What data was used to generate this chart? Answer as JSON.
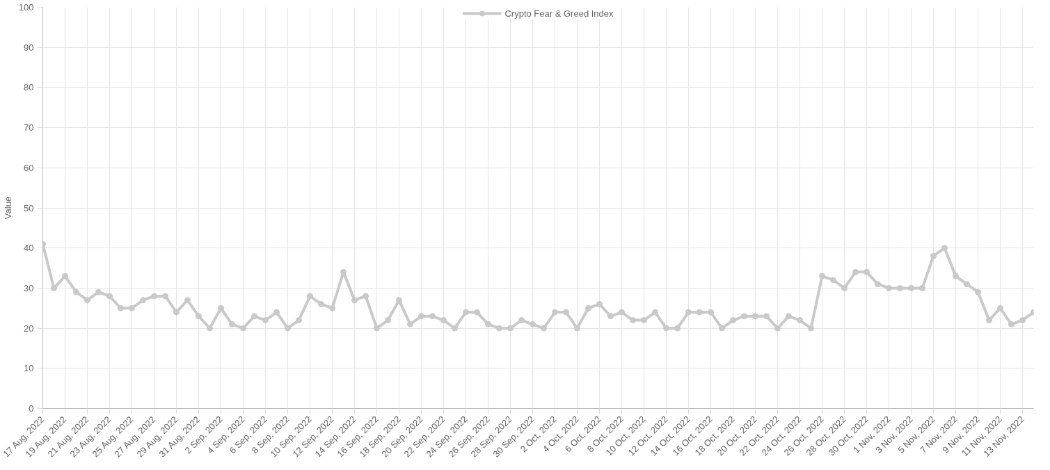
{
  "chart_data": {
    "type": "line",
    "ylabel": "Value",
    "ylim": [
      0,
      100
    ],
    "yticks": [
      0,
      10,
      20,
      30,
      40,
      50,
      60,
      70,
      80,
      90,
      100
    ],
    "xlim": [
      "2022-08-17",
      "2022-11-14"
    ],
    "xticks": [
      {
        "value": "2022-08-17",
        "label": "17 Aug, 2022"
      },
      {
        "value": "2022-08-19",
        "label": "19 Aug, 2022"
      },
      {
        "value": "2022-08-21",
        "label": "21 Aug, 2022"
      },
      {
        "value": "2022-08-23",
        "label": "23 Aug, 2022"
      },
      {
        "value": "2022-08-25",
        "label": "25 Aug, 2022"
      },
      {
        "value": "2022-08-27",
        "label": "27 Aug, 2022"
      },
      {
        "value": "2022-08-29",
        "label": "29 Aug, 2022"
      },
      {
        "value": "2022-08-31",
        "label": "31 Aug, 2022"
      },
      {
        "value": "2022-09-02",
        "label": "2 Sep, 2022"
      },
      {
        "value": "2022-09-04",
        "label": "4 Sep, 2022"
      },
      {
        "value": "2022-09-06",
        "label": "6 Sep, 2022"
      },
      {
        "value": "2022-09-08",
        "label": "8 Sep, 2022"
      },
      {
        "value": "2022-09-10",
        "label": "10 Sep, 2022"
      },
      {
        "value": "2022-09-12",
        "label": "12 Sep, 2022"
      },
      {
        "value": "2022-09-14",
        "label": "14 Sep, 2022"
      },
      {
        "value": "2022-09-16",
        "label": "16 Sep, 2022"
      },
      {
        "value": "2022-09-18",
        "label": "18 Sep, 2022"
      },
      {
        "value": "2022-09-20",
        "label": "20 Sep, 2022"
      },
      {
        "value": "2022-09-22",
        "label": "22 Sep, 2022"
      },
      {
        "value": "2022-09-24",
        "label": "24 Sep, 2022"
      },
      {
        "value": "2022-09-26",
        "label": "26 Sep, 2022"
      },
      {
        "value": "2022-09-28",
        "label": "28 Sep, 2022"
      },
      {
        "value": "2022-09-30",
        "label": "30 Sep, 2022"
      },
      {
        "value": "2022-10-02",
        "label": "2 Oct, 2022"
      },
      {
        "value": "2022-10-04",
        "label": "4 Oct, 2022"
      },
      {
        "value": "2022-10-06",
        "label": "6 Oct, 2022"
      },
      {
        "value": "2022-10-08",
        "label": "8 Oct, 2022"
      },
      {
        "value": "2022-10-10",
        "label": "10 Oct, 2022"
      },
      {
        "value": "2022-10-12",
        "label": "12 Oct, 2022"
      },
      {
        "value": "2022-10-14",
        "label": "14 Oct, 2022"
      },
      {
        "value": "2022-10-16",
        "label": "16 Oct, 2022"
      },
      {
        "value": "2022-10-18",
        "label": "18 Oct, 2022"
      },
      {
        "value": "2022-10-20",
        "label": "20 Oct, 2022"
      },
      {
        "value": "2022-10-22",
        "label": "22 Oct, 2022"
      },
      {
        "value": "2022-10-24",
        "label": "24 Oct, 2022"
      },
      {
        "value": "2022-10-26",
        "label": "26 Oct, 2022"
      },
      {
        "value": "2022-10-28",
        "label": "28 Oct, 2022"
      },
      {
        "value": "2022-10-30",
        "label": "30 Oct, 2022"
      },
      {
        "value": "2022-11-01",
        "label": "1 Nov, 2022"
      },
      {
        "value": "2022-11-03",
        "label": "3 Nov, 2022"
      },
      {
        "value": "2022-11-05",
        "label": "5 Nov, 2022"
      },
      {
        "value": "2022-11-07",
        "label": "7 Nov, 2022"
      },
      {
        "value": "2022-11-09",
        "label": "9 Nov, 2022"
      },
      {
        "value": "2022-11-11",
        "label": "11 Nov, 2022"
      },
      {
        "value": "2022-11-13",
        "label": "13 Nov, 2022"
      }
    ],
    "x": [
      "2022-08-17",
      "2022-08-18",
      "2022-08-19",
      "2022-08-20",
      "2022-08-21",
      "2022-08-22",
      "2022-08-23",
      "2022-08-24",
      "2022-08-25",
      "2022-08-26",
      "2022-08-27",
      "2022-08-28",
      "2022-08-29",
      "2022-08-30",
      "2022-08-31",
      "2022-09-01",
      "2022-09-02",
      "2022-09-03",
      "2022-09-04",
      "2022-09-05",
      "2022-09-06",
      "2022-09-07",
      "2022-09-08",
      "2022-09-09",
      "2022-09-10",
      "2022-09-11",
      "2022-09-12",
      "2022-09-13",
      "2022-09-14",
      "2022-09-15",
      "2022-09-16",
      "2022-09-17",
      "2022-09-18",
      "2022-09-19",
      "2022-09-20",
      "2022-09-21",
      "2022-09-22",
      "2022-09-23",
      "2022-09-24",
      "2022-09-25",
      "2022-09-26",
      "2022-09-27",
      "2022-09-28",
      "2022-09-29",
      "2022-09-30",
      "2022-10-01",
      "2022-10-02",
      "2022-10-03",
      "2022-10-04",
      "2022-10-05",
      "2022-10-06",
      "2022-10-07",
      "2022-10-08",
      "2022-10-09",
      "2022-10-10",
      "2022-10-11",
      "2022-10-12",
      "2022-10-13",
      "2022-10-14",
      "2022-10-15",
      "2022-10-16",
      "2022-10-17",
      "2022-10-18",
      "2022-10-19",
      "2022-10-20",
      "2022-10-21",
      "2022-10-22",
      "2022-10-23",
      "2022-10-24",
      "2022-10-25",
      "2022-10-26",
      "2022-10-27",
      "2022-10-28",
      "2022-10-29",
      "2022-10-30",
      "2022-10-31",
      "2022-11-01",
      "2022-11-02",
      "2022-11-03",
      "2022-11-04",
      "2022-11-05",
      "2022-11-06",
      "2022-11-07",
      "2022-11-08",
      "2022-11-09",
      "2022-11-10",
      "2022-11-11",
      "2022-11-12",
      "2022-11-13",
      "2022-11-14"
    ],
    "series": [
      {
        "name": "Crypto Fear & Greed Index",
        "color": "#c9c9c9",
        "values": [
          41,
          30,
          33,
          29,
          27,
          29,
          28,
          25,
          25,
          27,
          28,
          28,
          24,
          27,
          23,
          20,
          25,
          21,
          20,
          23,
          22,
          24,
          20,
          22,
          28,
          26,
          25,
          34,
          27,
          28,
          20,
          22,
          27,
          21,
          23,
          23,
          22,
          20,
          24,
          24,
          21,
          20,
          20,
          22,
          21,
          20,
          24,
          24,
          20,
          25,
          26,
          23,
          24,
          22,
          22,
          24,
          20,
          20,
          24,
          24,
          24,
          20,
          22,
          23,
          23,
          23,
          20,
          23,
          22,
          20,
          33,
          32,
          30,
          34,
          34,
          31,
          30,
          30,
          30,
          30,
          38,
          40,
          33,
          31,
          29,
          22,
          25,
          21,
          22,
          24
        ]
      }
    ],
    "grid": true,
    "legend": "top",
    "marker": "circle",
    "line_style": "solid"
  }
}
